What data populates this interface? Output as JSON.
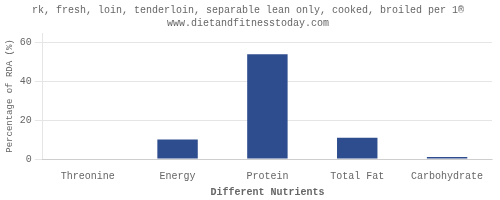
{
  "chart_data": {
    "type": "bar",
    "title": "rk, fresh, loin, tenderloin, separable lean only, cooked, broiled per 1®",
    "subtitle": "www.dietandfitnesstoday.com",
    "xlabel": "Different Nutrients",
    "ylabel": "Percentage of RDA (%)",
    "categories": [
      "Threonine",
      "Energy",
      "Protein",
      "Total Fat",
      "Carbohydrate"
    ],
    "values": [
      0.0,
      10.0,
      54.0,
      11.0,
      1.0
    ],
    "color": "#2e4d8e",
    "ylim": [
      0,
      65
    ],
    "yticks": [
      0,
      20,
      40,
      60
    ],
    "grid": true
  }
}
